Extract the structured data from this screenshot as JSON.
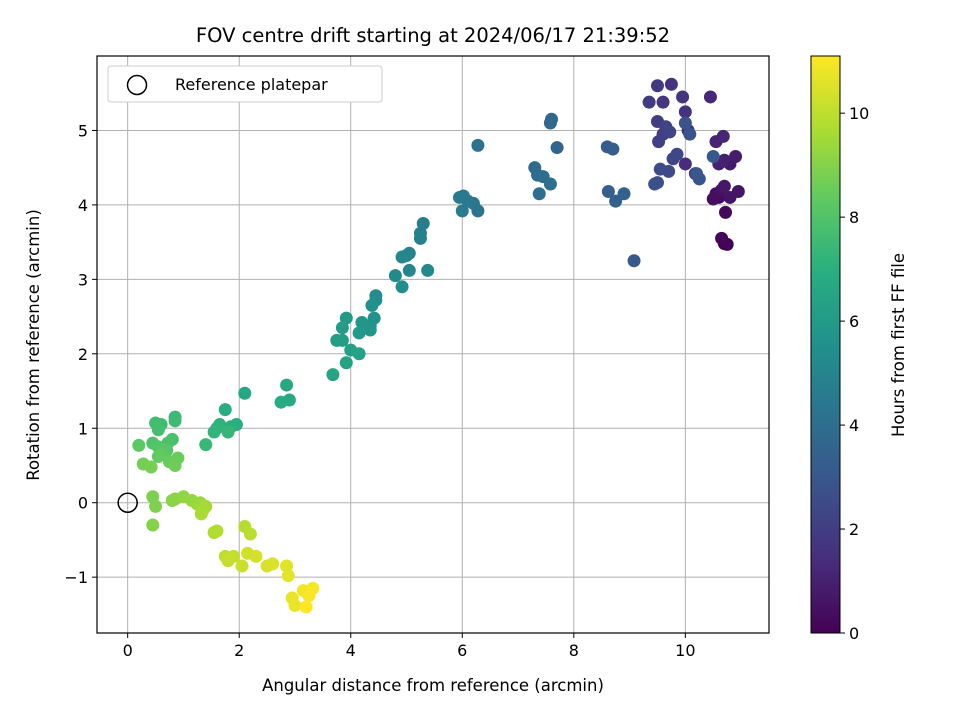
{
  "chart_data": {
    "type": "scatter",
    "title": "FOV centre drift starting at 2024/06/17 21:39:52",
    "xlabel": "Angular distance from reference (arcmin)",
    "ylabel": "Rotation from reference (arcmin)",
    "xlim": [
      -0.55,
      11.5
    ],
    "ylim": [
      -1.75,
      6.0
    ],
    "xticks": [
      0,
      2,
      4,
      6,
      8,
      10
    ],
    "yticks": [
      -1,
      0,
      1,
      2,
      3,
      4,
      5
    ],
    "xtick_labels": [
      "0",
      "2",
      "4",
      "6",
      "8",
      "10"
    ],
    "ytick_labels": [
      "−1",
      "0",
      "1",
      "2",
      "3",
      "4",
      "5"
    ],
    "grid": true,
    "legend": {
      "placement": "top-left",
      "entries": [
        "Reference platepar"
      ]
    },
    "colorbar": {
      "label": "Hours from first FF file",
      "range": [
        0,
        11.1
      ],
      "ticks": [
        0,
        2,
        4,
        6,
        8,
        10
      ],
      "tick_labels": [
        "0",
        "2",
        "4",
        "6",
        "8",
        "10"
      ],
      "colormap": "viridis"
    },
    "reference_point": {
      "x": 0,
      "y": 0
    },
    "series": [
      {
        "points": [
          [
            10.7,
            3.48
          ],
          [
            10.75,
            3.47
          ],
          [
            10.65,
            3.55
          ],
          [
            10.72,
            3.9
          ],
          [
            10.6,
            4.1
          ],
          [
            10.5,
            4.08
          ],
          [
            10.55,
            4.15
          ],
          [
            10.65,
            4.2
          ],
          [
            10.8,
            4.1
          ],
          [
            10.95,
            4.18
          ],
          [
            10.7,
            4.25
          ],
          [
            10.8,
            4.55
          ],
          [
            10.9,
            4.65
          ],
          [
            10.7,
            4.6
          ],
          [
            10.6,
            4.55
          ],
          [
            10.55,
            4.85
          ],
          [
            10.68,
            4.92
          ],
          [
            10.45,
            5.45
          ],
          [
            10.18,
            4.42
          ],
          [
            10.0,
            4.55
          ],
          [
            10.05,
            5.0
          ],
          [
            10.0,
            5.25
          ],
          [
            9.75,
            5.62
          ],
          [
            9.95,
            5.45
          ],
          [
            9.6,
            5.38
          ],
          [
            9.5,
            5.6
          ],
          [
            9.35,
            5.38
          ],
          [
            9.5,
            5.12
          ],
          [
            9.6,
            4.95
          ],
          [
            9.52,
            4.85
          ],
          [
            9.65,
            5.05
          ],
          [
            9.72,
            4.98
          ],
          [
            9.78,
            4.62
          ],
          [
            9.85,
            4.68
          ],
          [
            9.7,
            4.45
          ],
          [
            9.55,
            4.48
          ],
          [
            9.5,
            4.3
          ],
          [
            9.45,
            4.28
          ],
          [
            10.0,
            5.1
          ],
          [
            10.08,
            4.95
          ],
          [
            10.25,
            4.35
          ],
          [
            10.2,
            4.42
          ],
          [
            10.5,
            4.65
          ],
          [
            9.08,
            3.25
          ],
          [
            8.6,
            4.78
          ],
          [
            8.7,
            4.75
          ],
          [
            8.62,
            4.18
          ],
          [
            8.75,
            4.05
          ],
          [
            8.9,
            4.15
          ],
          [
            7.7,
            4.77
          ],
          [
            7.6,
            5.15
          ],
          [
            7.58,
            5.1
          ],
          [
            7.35,
            4.4
          ],
          [
            7.3,
            4.5
          ],
          [
            7.45,
            4.38
          ],
          [
            7.58,
            4.28
          ],
          [
            7.38,
            4.15
          ],
          [
            6.28,
            4.8
          ],
          [
            6.28,
            3.92
          ],
          [
            6.2,
            4.02
          ],
          [
            6.1,
            4.05
          ],
          [
            6.02,
            4.12
          ],
          [
            5.95,
            4.1
          ],
          [
            6.0,
            3.92
          ],
          [
            5.3,
            3.75
          ],
          [
            5.25,
            3.62
          ],
          [
            5.25,
            3.55
          ],
          [
            5.05,
            3.35
          ],
          [
            5.0,
            3.32
          ],
          [
            4.92,
            3.3
          ],
          [
            5.05,
            3.12
          ],
          [
            5.38,
            3.12
          ],
          [
            4.8,
            3.05
          ],
          [
            4.92,
            2.9
          ],
          [
            4.45,
            2.78
          ],
          [
            4.45,
            2.72
          ],
          [
            4.38,
            2.65
          ],
          [
            4.42,
            2.48
          ],
          [
            4.35,
            2.38
          ],
          [
            4.35,
            2.32
          ],
          [
            4.2,
            2.42
          ],
          [
            4.15,
            2.28
          ],
          [
            3.92,
            2.48
          ],
          [
            3.85,
            2.35
          ],
          [
            3.75,
            2.18
          ],
          [
            3.85,
            2.18
          ],
          [
            4.0,
            2.05
          ],
          [
            4.15,
            2.0
          ],
          [
            3.92,
            1.88
          ],
          [
            3.68,
            1.72
          ],
          [
            2.1,
            1.47
          ],
          [
            2.85,
            1.58
          ],
          [
            2.9,
            1.38
          ],
          [
            2.75,
            1.35
          ],
          [
            1.75,
            1.25
          ],
          [
            1.95,
            1.05
          ],
          [
            1.85,
            1.02
          ],
          [
            1.65,
            1.05
          ],
          [
            1.6,
            1.0
          ],
          [
            1.55,
            0.95
          ],
          [
            1.8,
            0.95
          ],
          [
            1.4,
            0.78
          ],
          [
            0.85,
            1.15
          ],
          [
            0.85,
            1.1
          ],
          [
            0.6,
            1.05
          ],
          [
            0.5,
            1.07
          ],
          [
            0.55,
            0.98
          ],
          [
            0.8,
            0.85
          ],
          [
            0.72,
            0.8
          ],
          [
            0.45,
            0.8
          ],
          [
            0.55,
            0.75
          ],
          [
            0.6,
            0.72
          ],
          [
            0.7,
            0.7
          ],
          [
            0.2,
            0.77
          ],
          [
            0.6,
            0.65
          ],
          [
            0.55,
            0.62
          ],
          [
            0.75,
            0.55
          ],
          [
            0.9,
            0.6
          ],
          [
            0.85,
            0.5
          ],
          [
            0.28,
            0.52
          ],
          [
            0.42,
            0.48
          ],
          [
            0.45,
            0.08
          ],
          [
            0.5,
            -0.05
          ],
          [
            0.45,
            -0.3
          ],
          [
            0.8,
            0.03
          ],
          [
            0.85,
            0.05
          ],
          [
            1.0,
            0.08
          ],
          [
            1.15,
            0.03
          ],
          [
            1.25,
            -0.02
          ],
          [
            1.3,
            0.0
          ],
          [
            1.35,
            -0.1
          ],
          [
            1.4,
            -0.05
          ],
          [
            1.32,
            -0.15
          ],
          [
            1.55,
            -0.4
          ],
          [
            1.6,
            -0.38
          ],
          [
            2.1,
            -0.32
          ],
          [
            2.2,
            -0.42
          ],
          [
            1.75,
            -0.72
          ],
          [
            1.9,
            -0.72
          ],
          [
            1.8,
            -0.78
          ],
          [
            2.05,
            -0.85
          ],
          [
            2.15,
            -0.68
          ],
          [
            2.3,
            -0.72
          ],
          [
            2.5,
            -0.85
          ],
          [
            2.6,
            -0.82
          ],
          [
            2.85,
            -0.85
          ],
          [
            2.88,
            -0.98
          ],
          [
            2.95,
            -1.28
          ],
          [
            3.0,
            -1.38
          ],
          [
            3.15,
            -1.18
          ],
          [
            3.32,
            -1.15
          ],
          [
            3.25,
            -1.25
          ],
          [
            3.2,
            -1.4
          ]
        ]
      }
    ]
  }
}
